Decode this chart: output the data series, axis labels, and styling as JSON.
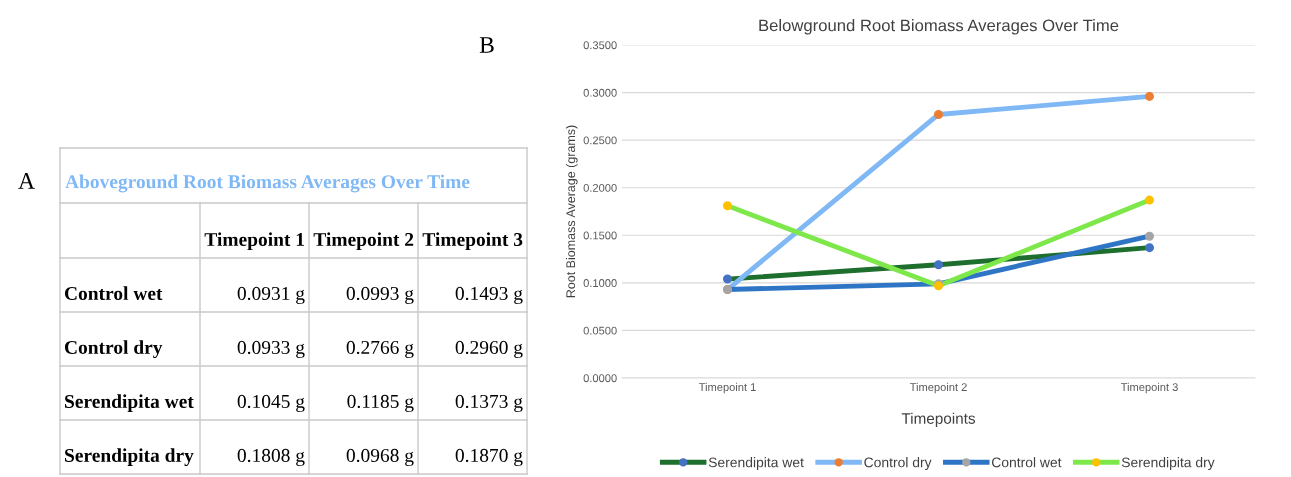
{
  "chart_data": [
    {
      "type": "other",
      "title": "Aboveground Root Biomass Averages Over Time",
      "annotations": [
        "A"
      ],
      "categories": [
        "Timepoint 1",
        "Timepoint 2",
        "Timepoint 3"
      ],
      "y_categories": [
        "Control wet",
        "Control dry",
        "Serendipita wet",
        "Serendipita dry"
      ],
      "cell_labels": [
        [
          "0.0931 g",
          "0.0993 g",
          "0.1493 g"
        ],
        [
          "0.0933 g",
          "0.2766 g",
          "0.2960 g"
        ],
        [
          "0.1045 g",
          "0.1185 g",
          "0.1373 g"
        ],
        [
          "0.1808 g",
          "0.0968 g",
          "0.1870 g"
        ]
      ]
    },
    {
      "type": "line",
      "title": "Belowground Root Biomass Averages Over Time",
      "annotations": [
        "B"
      ],
      "xlabel": "Timepoints",
      "ylabel": "Root Biomass Average (grams)",
      "categories": [
        "Timepoint 1",
        "Timepoint 2",
        "Timepoint 3"
      ],
      "ylim": [
        0,
        0.35
      ],
      "yticks": [
        {
          "value": 0,
          "label": "0.0000"
        },
        {
          "value": 0.05,
          "label": "0.0500"
        },
        {
          "value": 0.1,
          "label": "0.1000"
        },
        {
          "value": 0.15,
          "label": "0.1500"
        },
        {
          "value": 0.2,
          "label": "0.2000"
        },
        {
          "value": 0.25,
          "label": "0.2500"
        },
        {
          "value": 0.3,
          "label": "0.3000"
        },
        {
          "value": 0.35,
          "label": "0.3500"
        }
      ],
      "grid": "y",
      "legend": "bottom",
      "marker": "circle",
      "series": [
        {
          "name": "Serendipita wet",
          "color": "#1e6e2e",
          "colors": [
            "#4472c4",
            "#4472c4",
            "#4472c4"
          ],
          "values": [
            0.104,
            0.119,
            0.137
          ]
        },
        {
          "name": "Control dry",
          "color": "#7fb8f5",
          "colors": [
            "#ed7d31",
            "#ed7d31",
            "#ed7d31"
          ],
          "values": [
            0.093,
            0.277,
            0.296
          ]
        },
        {
          "name": "Control wet",
          "color": "#2e75c6",
          "colors": [
            "#a5a5a5",
            "#a5a5a5",
            "#a5a5a5"
          ],
          "values": [
            0.093,
            0.099,
            0.149
          ]
        },
        {
          "name": "Serendipita dry",
          "color": "#7ee84a",
          "colors": [
            "#ffc000",
            "#ffc000",
            "#ffc000"
          ],
          "values": [
            0.181,
            0.097,
            0.187
          ]
        }
      ]
    }
  ]
}
